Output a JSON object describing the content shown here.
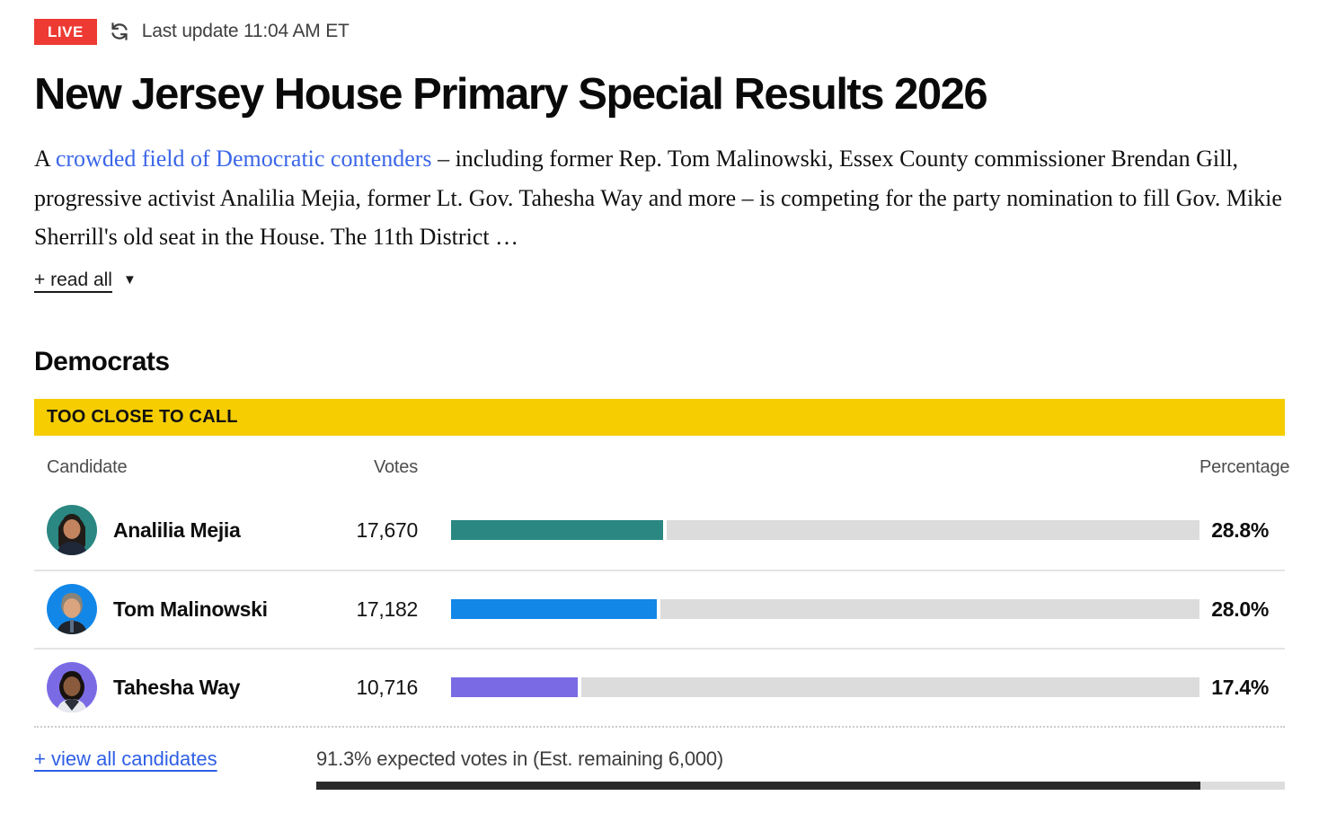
{
  "status_bar": {
    "live_label": "LIVE",
    "last_update": "Last update 11:04 AM ET"
  },
  "page_title": "New Jersey House Primary Special Results 2026",
  "intro": {
    "prefix": "A ",
    "link_text": "crowded field of Democratic contenders",
    "rest": " – including former Rep. Tom Malinowski, Essex County commissioner Brendan Gill, progressive activist Analilia Mejia, former Lt. Gov. Tahesha Way and more – is competing for the party nomination to fill Gov. Mikie Sherrill's old seat in the House. The 11th District …",
    "read_all_label": "+ read all"
  },
  "icons": {
    "refresh": "refresh-circular-arrows",
    "read_all_caret": "▼"
  },
  "section": {
    "party_heading": "Democrats",
    "banner": "TOO CLOSE TO CALL",
    "columns": {
      "candidate": "Candidate",
      "votes": "Votes",
      "percentage": "Percentage"
    },
    "candidates": [
      {
        "name": "Analilia Mejia",
        "votes": "17,670",
        "percentage": "28.8%",
        "bar_pct": 28.8,
        "color": "#2A8781"
      },
      {
        "name": "Tom Malinowski",
        "votes": "17,182",
        "percentage": "28.0%",
        "bar_pct": 28.0,
        "color": "#1287E8"
      },
      {
        "name": "Tahesha Way",
        "votes": "10,716",
        "percentage": "17.4%",
        "bar_pct": 17.4,
        "color": "#7A6BE5"
      }
    ],
    "view_all_label": "+ view all candidates",
    "expected_votes_text": "91.3% expected votes in (Est. remaining 6,000)",
    "expected_votes_pct": 91.3
  },
  "chart_data": {
    "type": "bar",
    "categories": [
      "Analilia Mejia",
      "Tom Malinowski",
      "Tahesha Way"
    ],
    "series": [
      {
        "name": "Votes",
        "values": [
          17670,
          17182,
          10716
        ]
      },
      {
        "name": "Percentage",
        "values": [
          28.8,
          28.0,
          17.4
        ]
      }
    ],
    "title": "Democrats — Too Close To Call",
    "xlabel": "",
    "ylabel": "Percentage",
    "ylim": [
      0,
      100
    ]
  },
  "colors": {
    "live_red": "#ED3A33",
    "banner_yellow": "#F5CD01",
    "link_blue": "#2E5FE5",
    "intro_link_blue": "#3B66E8",
    "bar_track_gray": "#DCDCDC",
    "progress_dark": "#2B2B2B"
  }
}
